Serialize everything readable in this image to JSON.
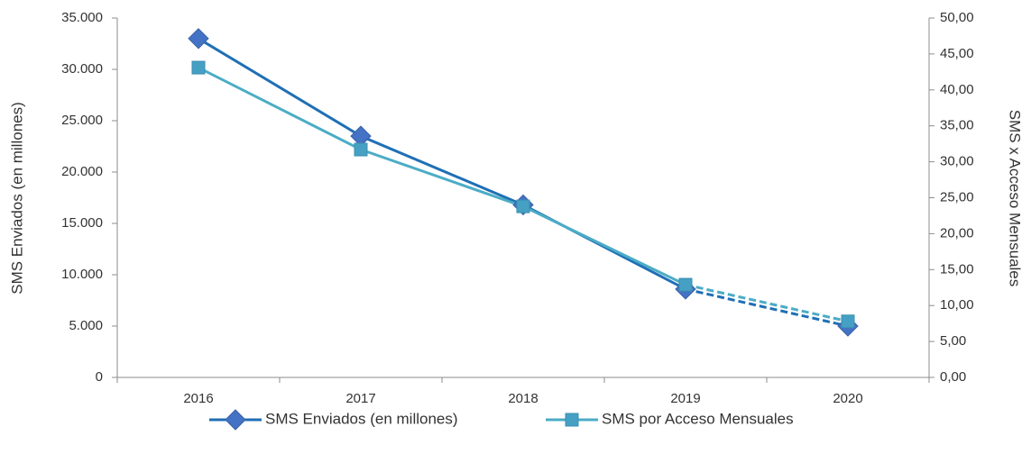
{
  "chart_data": {
    "type": "line",
    "x_label": null,
    "y_label": "SMS Enviados (en millones)",
    "y2_label": "SMS x Acceso Mensuales",
    "categories": [
      "2016",
      "2017",
      "2018",
      "2019",
      "2020"
    ],
    "series": [
      {
        "name": "SMS Enviados (en millones)",
        "color": "#1f6fb5",
        "marker_color": "#4472c4",
        "marker": "diamond",
        "axis": "y",
        "dash_from": 3,
        "values": [
          33000,
          23500,
          16800,
          8600,
          5000
        ]
      },
      {
        "name": "SMS por Acceso Mensuales",
        "color": "#4bacc6",
        "marker_color": "#45a0c4",
        "marker": "square",
        "axis": "y2",
        "dash_from": 3,
        "values": [
          43.1,
          31.7,
          23.8,
          12.9,
          7.8
        ]
      }
    ],
    "ylim": [
      0,
      35000
    ],
    "yticks": [
      0,
      {
        "value": 5000,
        "label": "5.000"
      },
      {
        "value": 10000,
        "label": "10.000"
      },
      {
        "value": 15000,
        "label": "15.000"
      },
      {
        "value": 20000,
        "label": "20.000"
      },
      {
        "value": 25000,
        "label": "25.000"
      },
      {
        "value": 30000,
        "label": "30.000"
      },
      {
        "value": 35000,
        "label": "35.000"
      }
    ],
    "y2lim": [
      0,
      50
    ],
    "y2ticks": [
      {
        "value": 0,
        "label": "0,00"
      },
      {
        "value": 5,
        "label": "5,00"
      },
      {
        "value": 10,
        "label": "10,00"
      },
      {
        "value": 15,
        "label": "15,00"
      },
      {
        "value": 20,
        "label": "20,00"
      },
      {
        "value": 25,
        "label": "25,00"
      },
      {
        "value": 30,
        "label": "30,00"
      },
      {
        "value": 35,
        "label": "35,00"
      },
      {
        "value": 40,
        "label": "40,00"
      },
      {
        "value": 45,
        "label": "45,00"
      },
      {
        "value": 50,
        "label": "50,00"
      }
    ],
    "grid": false,
    "legend": "bottom"
  }
}
